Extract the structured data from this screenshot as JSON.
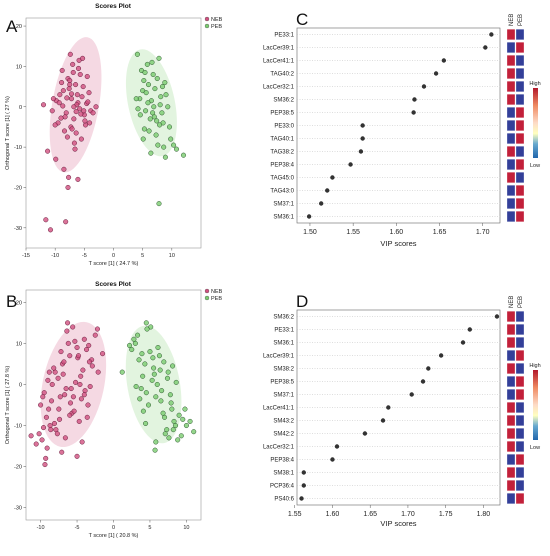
{
  "chart_data": [
    {
      "panel": "A",
      "type": "scatter",
      "title": "Scores Plot",
      "xlabel": "T score [1] ( 24.7 %)",
      "ylabel": "Orthogonal T score [1] ( 27 %)",
      "xlim": [
        -15,
        15
      ],
      "ylim": [
        -35,
        22
      ],
      "xticks": [
        -15,
        -10,
        -5,
        0,
        5,
        10
      ],
      "yticks": [
        -30,
        -20,
        -10,
        0,
        10,
        20
      ],
      "legend": [
        "NEB",
        "PEB"
      ],
      "legend_position": "top-right",
      "series": [
        {
          "name": "NEB",
          "color": "#c0306a",
          "fill": "#d15080",
          "ellipse": {
            "cx": -6.5,
            "cy": 0.5,
            "rx": 4.0,
            "ry": 17.0,
            "rotation_deg": 10
          },
          "x": [
            -9.8,
            -9.2,
            -8.7,
            -8.1,
            -7.6,
            -7.2,
            -6.8,
            -6.5,
            -6.1,
            -5.8,
            -5.4,
            -5.0,
            -4.6,
            -4.2,
            -3.9,
            -9.5,
            -8.9,
            -8.3,
            -7.8,
            -7.3,
            -6.9,
            -6.4,
            -6.0,
            -5.6,
            -5.2,
            -4.8,
            -4.4,
            -8.6,
            -7.9,
            -7.0,
            -6.2,
            -5.5,
            -4.9,
            -7.5,
            -6.7,
            -5.9,
            -8.0,
            -7.1,
            -6.3,
            -5.3,
            -9.0,
            -4.5,
            -8.4,
            -5.7,
            -6.6,
            -7.4,
            -10.3,
            -4.1,
            -12.0,
            -11.3,
            -10.5,
            -9.9,
            -8.5,
            -7.7,
            -6.1,
            -7.8,
            -11.6,
            -10.8,
            -8.2,
            -9.3,
            -6.8,
            -5.1,
            -7.2,
            -3.5,
            -3.0,
            -8.8,
            -7.5,
            -10.0,
            -6.4
          ],
          "y": [
            1.5,
            3.0,
            0.2,
            -1.5,
            4.5,
            2.0,
            -3.0,
            5.5,
            1.0,
            -0.5,
            2.5,
            -2.0,
            0.8,
            3.5,
            -1.0,
            -4.0,
            6.0,
            -2.5,
            7.0,
            -5.0,
            8.5,
            -6.5,
            9.5,
            -1.8,
            5.0,
            -4.5,
            1.2,
            4.0,
            -7.5,
            10.5,
            3.0,
            -8.0,
            -3.5,
            6.5,
            -9.0,
            11.5,
            2.2,
            -5.5,
            0.5,
            12.0,
            -2.8,
            7.5,
            -6.0,
            8.0,
            -10.5,
            13.0,
            2.0,
            -4.0,
            0.5,
            -11.0,
            -1.0,
            -13.0,
            -15.5,
            -17.5,
            -18.0,
            -20.0,
            -28.0,
            -30.5,
            -28.5,
            1.0,
            0.0,
            -1.0,
            3.2,
            -1.5,
            0.0,
            9.0,
            5.5,
            -4.5,
            -1.2
          ]
        },
        {
          "name": "PEB",
          "color": "#3a8a40",
          "fill": "#7acc6f",
          "ellipse": {
            "cx": 6.5,
            "cy": 1.0,
            "rx": 4.0,
            "ry": 13.5,
            "rotation_deg": -12
          },
          "x": [
            4.5,
            5.0,
            5.5,
            6.0,
            6.5,
            7.0,
            7.5,
            8.0,
            8.5,
            9.0,
            4.8,
            5.3,
            5.8,
            6.3,
            6.8,
            7.3,
            7.8,
            8.3,
            8.8,
            4.2,
            5.1,
            5.6,
            6.1,
            6.6,
            7.1,
            7.6,
            8.1,
            8.6,
            9.3,
            5.2,
            6.4,
            7.4,
            3.9,
            9.6,
            10.3,
            4.6,
            5.4,
            7.9,
            9.8,
            6.9,
            4.1,
            8.9,
            10.8,
            12.0,
            7.8,
            5.9,
            6.7,
            8.4
          ],
          "y": [
            2.0,
            4.0,
            -1.0,
            5.5,
            1.5,
            -2.5,
            7.0,
            0.5,
            -4.0,
            3.0,
            9.0,
            -5.5,
            10.5,
            -3.0,
            8.0,
            -7.0,
            12.0,
            -1.5,
            6.0,
            -0.5,
            -8.0,
            3.5,
            -6.0,
            11.0,
            4.5,
            -9.5,
            2.5,
            -10.0,
            0.0,
            6.5,
            -11.5,
            -3.5,
            2.0,
            -5.0,
            -9.5,
            -2.0,
            8.5,
            -4.5,
            -8.0,
            0.0,
            13.0,
            -12.5,
            -10.5,
            -12.0,
            -24.0,
            1.0,
            -1.5,
            5.0
          ]
        }
      ]
    },
    {
      "panel": "B",
      "type": "scatter",
      "title": "Scores Plot",
      "xlabel": "T score [1] ( 20.8 %)",
      "ylabel": "Orthogonal T score [1] ( 27.8 %)",
      "xlim": [
        -12,
        12
      ],
      "ylim": [
        -33,
        23
      ],
      "xticks": [
        -10,
        -5,
        0,
        5,
        10
      ],
      "yticks": [
        -30,
        -20,
        -10,
        0,
        10,
        20
      ],
      "legend": [
        "NEB",
        "PEB"
      ],
      "legend_position": "top-right",
      "series": [
        {
          "name": "NEB",
          "color": "#c0306a",
          "fill": "#d15080",
          "ellipse": {
            "cx": -5.5,
            "cy": 0.0,
            "rx": 4.2,
            "ry": 15.5,
            "rotation_deg": 12
          },
          "x": [
            -9.5,
            -9.0,
            -8.5,
            -8.0,
            -7.5,
            -7.0,
            -6.5,
            -6.0,
            -5.5,
            -5.0,
            -4.5,
            -4.0,
            -3.5,
            -3.0,
            -2.5,
            -9.2,
            -8.7,
            -8.2,
            -7.7,
            -7.2,
            -6.7,
            -6.2,
            -5.7,
            -5.2,
            -4.7,
            -4.2,
            -3.7,
            -3.2,
            -8.9,
            -7.9,
            -6.9,
            -5.9,
            -4.9,
            -3.9,
            -2.9,
            -8.4,
            -7.4,
            -6.4,
            -5.4,
            -4.4,
            -3.4,
            -7.6,
            -6.6,
            -5.6,
            -4.6,
            -9.6,
            -2.2,
            -10.2,
            -9.8,
            -11.3,
            -10.6,
            -9.1,
            -8.6,
            -7.1,
            -6.0,
            -5.0,
            -4.0,
            -3.3,
            -2.1,
            -1.5,
            -9.7,
            -8.1,
            -6.3,
            -4.3,
            -10.0,
            -8.8,
            -7.3,
            -5.3,
            -3.6,
            -6.8,
            -5.8,
            -4.8,
            -9.3,
            -9.4
          ],
          "y": [
            -2.0,
            1.0,
            -4.0,
            3.0,
            -6.0,
            5.0,
            -1.0,
            7.0,
            -3.0,
            9.0,
            2.0,
            11.0,
            -5.0,
            6.0,
            12.0,
            -8.0,
            -10.0,
            4.0,
            -12.0,
            8.0,
            -2.5,
            10.0,
            -7.0,
            0.5,
            -9.0,
            3.5,
            8.5,
            -0.5,
            -6.0,
            -11.0,
            2.5,
            -4.5,
            6.5,
            -1.5,
            4.5,
            0.0,
            -8.5,
            13.0,
            -6.5,
            -3.5,
            9.5,
            1.5,
            -13.0,
            14.0,
            0.0,
            -10.5,
            13.5,
            -12.0,
            -13.5,
            -12.5,
            -14.5,
            -15.5,
            -11.0,
            -16.5,
            -7.5,
            -17.5,
            -2.5,
            5.5,
            3.0,
            7.5,
            -3.0,
            -9.5,
            15.0,
            -14.0,
            -5.0,
            3.0,
            -3.0,
            10.5,
            -8.0,
            5.5,
            -1.0,
            7.0,
            -18.0,
            -19.5
          ]
        },
        {
          "name": "PEB",
          "color": "#3a8a40",
          "fill": "#7acc6f",
          "ellipse": {
            "cx": 5.5,
            "cy": 0.0,
            "rx": 3.6,
            "ry": 14.5,
            "rotation_deg": -10
          },
          "x": [
            3.0,
            3.5,
            4.0,
            4.5,
            5.0,
            5.5,
            6.0,
            6.5,
            7.0,
            7.5,
            8.0,
            8.5,
            3.3,
            3.8,
            4.3,
            4.8,
            5.3,
            5.8,
            6.3,
            6.8,
            7.3,
            7.8,
            8.3,
            2.8,
            4.1,
            5.1,
            6.1,
            7.1,
            8.1,
            9.0,
            3.6,
            4.6,
            5.6,
            6.6,
            7.6,
            8.6,
            9.5,
            4.4,
            5.4,
            6.4,
            7.4,
            2.5,
            10.0,
            10.5,
            11.0,
            9.8,
            1.2,
            4.5,
            5.8,
            7.9,
            6.9,
            3.9,
            8.8,
            2.2,
            3.1,
            5.7,
            8.2,
            9.3
          ],
          "y": [
            10.0,
            6.0,
            2.0,
            -2.0,
            8.0,
            4.0,
            0.0,
            -4.0,
            -8.0,
            3.0,
            -6.0,
            -10.0,
            12.0,
            -1.0,
            5.0,
            -5.0,
            1.0,
            -3.0,
            7.0,
            -7.0,
            -11.0,
            -2.5,
            -9.0,
            11.0,
            -6.5,
            14.0,
            9.0,
            -12.0,
            4.5,
            -7.5,
            -3.5,
            13.5,
            2.5,
            -1.5,
            -13.0,
            0.5,
            -8.5,
            -9.5,
            6.5,
            3.5,
            1.5,
            8.5,
            -10.0,
            -9.0,
            -11.5,
            -6.0,
            3.0,
            15.0,
            -14.0,
            -4.5,
            5.5,
            7.5,
            -13.5,
            9.5,
            -0.5,
            -16.0,
            -11.0,
            -12.5
          ]
        }
      ]
    },
    {
      "panel": "C",
      "type": "scatter",
      "xlabel": "VIP scores",
      "xlim": [
        1.485,
        1.72
      ],
      "xticks": [
        1.5,
        1.55,
        1.6,
        1.65,
        1.7
      ],
      "heatmap_columns": [
        "NEB",
        "PEB"
      ],
      "legend_labels": [
        "High",
        "Low"
      ],
      "features": [
        "PE33:1",
        "LacCer39:1",
        "LacCer41:1",
        "TAG40:2",
        "LacCer32:1",
        "SM36:2",
        "PEP38:5",
        "PE33:0",
        "TAG40:1",
        "TAG38:2",
        "PEP38:4",
        "TAG45:0",
        "TAG43:0",
        "SM37:1",
        "SM36:1"
      ],
      "values": [
        1.71,
        1.703,
        1.655,
        1.646,
        1.632,
        1.621,
        1.62,
        1.561,
        1.561,
        1.559,
        1.547,
        1.526,
        1.52,
        1.513,
        1.499
      ],
      "heatmap": [
        [
          "high",
          "low"
        ],
        [
          "low",
          "high"
        ],
        [
          "high",
          "low"
        ],
        [
          "high",
          "low"
        ],
        [
          "high",
          "low"
        ],
        [
          "high",
          "low"
        ],
        [
          "low",
          "high"
        ],
        [
          "low",
          "high"
        ],
        [
          "low",
          "high"
        ],
        [
          "high",
          "low"
        ],
        [
          "low",
          "high"
        ],
        [
          "high",
          "low"
        ],
        [
          "low",
          "high"
        ],
        [
          "low",
          "high"
        ],
        [
          "low",
          "high"
        ]
      ]
    },
    {
      "panel": "D",
      "type": "scatter",
      "xlabel": "VIP scores",
      "xlim": [
        1.553,
        1.822
      ],
      "xticks": [
        1.55,
        1.6,
        1.65,
        1.7,
        1.75,
        1.8
      ],
      "heatmap_columns": [
        "NEB",
        "PEB"
      ],
      "legend_labels": [
        "High",
        "Low"
      ],
      "features": [
        "SM36:2",
        "PE33:1",
        "SM36:1",
        "LacCer39:1",
        "SM38:2",
        "PEP38:5",
        "SM37:1",
        "LacCer41:1",
        "SM43:2",
        "SM42:2",
        "LacCer32:1",
        "PEP38:4",
        "SM38:1",
        "PCP36:4",
        "PS40:6"
      ],
      "values": [
        1.818,
        1.782,
        1.773,
        1.744,
        1.727,
        1.72,
        1.705,
        1.674,
        1.667,
        1.643,
        1.606,
        1.6,
        1.562,
        1.562,
        1.559
      ],
      "heatmap": [
        [
          "high",
          "low"
        ],
        [
          "high",
          "low"
        ],
        [
          "high",
          "low"
        ],
        [
          "low",
          "high"
        ],
        [
          "high",
          "low"
        ],
        [
          "low",
          "high"
        ],
        [
          "low",
          "high"
        ],
        [
          "high",
          "low"
        ],
        [
          "high",
          "low"
        ],
        [
          "high",
          "low"
        ],
        [
          "high",
          "low"
        ],
        [
          "low",
          "high"
        ],
        [
          "high",
          "low"
        ],
        [
          "high",
          "low"
        ],
        [
          "low",
          "high"
        ]
      ]
    }
  ]
}
